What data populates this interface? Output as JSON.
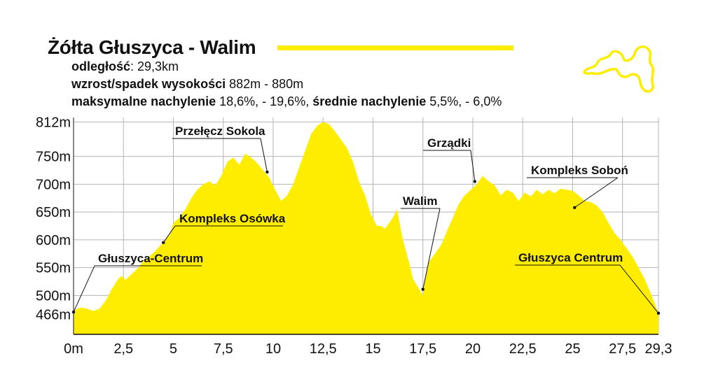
{
  "header": {
    "title": "Żółta Głuszyca - Walim",
    "accent_color": "#ffed00",
    "lines": [
      [
        {
          "t": "odległość",
          "b": true
        },
        {
          "t": ": 29,3km",
          "b": false
        }
      ],
      [
        {
          "t": "wzrost/spadek wysokości",
          "b": true
        },
        {
          "t": " 882m - 880m",
          "b": false
        }
      ],
      [
        {
          "t": "maksymalne nachylenie",
          "b": true
        },
        {
          "t": " 18,6%, - 19,6%, ",
          "b": false
        },
        {
          "t": "średnie nachylenie",
          "b": true
        },
        {
          "t": " 5,5%, - 6,0%",
          "b": false
        }
      ]
    ]
  },
  "route_icon": "route-outline-icon",
  "chart_data": {
    "type": "area",
    "fill_color": "#ffed00",
    "xlim": [
      0,
      29.3
    ],
    "ylim": [
      430,
      820
    ],
    "grid": true,
    "xticks": [
      0,
      2.5,
      5,
      7.5,
      10,
      12.5,
      15,
      17.5,
      20,
      22.5,
      25,
      27.5,
      29.3
    ],
    "xtick_labels": [
      "0m",
      "2,5",
      "5",
      "7,5",
      "10",
      "12,5",
      "15",
      "17,5",
      "20",
      "22,5",
      "25",
      "27,5",
      "29,3"
    ],
    "yticks": [
      466,
      500,
      550,
      600,
      650,
      700,
      750,
      812
    ],
    "ytick_labels": [
      "466m",
      "500m",
      "550m",
      "600m",
      "650m",
      "700m",
      "750m",
      "812m"
    ],
    "x": [
      0,
      0.3,
      0.6,
      1.0,
      1.3,
      1.6,
      1.9,
      2.2,
      2.4,
      2.6,
      2.9,
      3.2,
      3.5,
      3.8,
      4.1,
      4.4,
      4.8,
      5.0,
      5.3,
      5.6,
      5.9,
      6.2,
      6.5,
      6.8,
      7.1,
      7.4,
      7.7,
      8.0,
      8.3,
      8.6,
      8.9,
      9.2,
      9.5,
      9.8,
      10.1,
      10.4,
      10.7,
      11.0,
      11.3,
      11.6,
      11.9,
      12.2,
      12.5,
      12.8,
      13.1,
      13.4,
      13.7,
      14.0,
      14.3,
      14.6,
      14.9,
      15.2,
      15.4,
      15.6,
      15.8,
      16.0,
      16.2,
      16.5,
      16.8,
      17.0,
      17.3,
      17.5,
      17.6,
      17.8,
      18.1,
      18.4,
      18.7,
      19.0,
      19.3,
      19.6,
      19.9,
      20.2,
      20.5,
      20.8,
      21.1,
      21.4,
      21.7,
      22.0,
      22.3,
      22.6,
      22.9,
      23.2,
      23.5,
      23.8,
      24.1,
      24.4,
      24.7,
      25.0,
      25.3,
      25.6,
      25.9,
      26.2,
      26.5,
      26.8,
      27.1,
      27.4,
      27.7,
      28.0,
      28.3,
      28.6,
      28.9,
      29.3
    ],
    "y": [
      472,
      478,
      477,
      472,
      476,
      490,
      510,
      528,
      535,
      528,
      538,
      548,
      562,
      570,
      580,
      592,
      608,
      630,
      640,
      655,
      675,
      690,
      700,
      705,
      698,
      715,
      740,
      748,
      735,
      755,
      748,
      738,
      725,
      712,
      690,
      670,
      680,
      700,
      730,
      760,
      790,
      805,
      812,
      808,
      795,
      780,
      765,
      740,
      705,
      680,
      645,
      625,
      625,
      620,
      630,
      640,
      655,
      600,
      560,
      530,
      512,
      500,
      530,
      560,
      575,
      590,
      615,
      640,
      665,
      680,
      690,
      700,
      715,
      705,
      698,
      680,
      690,
      685,
      670,
      685,
      678,
      690,
      682,
      690,
      684,
      692,
      690,
      688,
      680,
      670,
      668,
      662,
      650,
      630,
      612,
      600,
      585,
      570,
      550,
      530,
      505,
      468
    ],
    "annotations": [
      {
        "label": "Przełęcz Sokola",
        "x": 9.7,
        "y": 722,
        "side": "left"
      },
      {
        "label": "Kompleks Osówka",
        "x": 4.5,
        "y": 595,
        "side": "right"
      },
      {
        "label": "Głuszyca-Centrum",
        "x": 0.0,
        "y": 470,
        "side": "right"
      },
      {
        "label": "Walim",
        "x": 17.5,
        "y": 511,
        "side": "up"
      },
      {
        "label": "Grządki",
        "x": 20.1,
        "y": 705,
        "side": "up"
      },
      {
        "label": "Kompleks Soboń",
        "x": 25.1,
        "y": 658,
        "side": "left"
      },
      {
        "label": "Głuszyca Centrum",
        "x": 29.3,
        "y": 468,
        "side": "left"
      }
    ]
  }
}
